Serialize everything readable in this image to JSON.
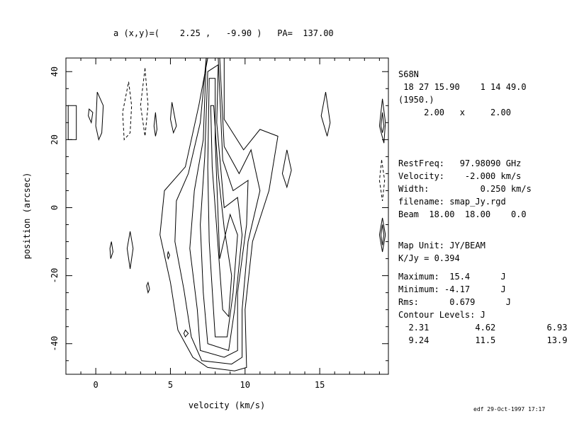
{
  "header": "a (x,y)=(    2.25 ,   -9.90 )   PA=  137.00",
  "info": {
    "source": "S68N",
    "coords": " 18 27 15.90    1 14 49.0",
    "epoch": "(1950.)",
    "cell": "     2.00   x     2.00",
    "restfreq": "RestFreq:   97.98090 GHz",
    "velocity": "Velocity:    -2.000 km/s",
    "width": "Width:          0.250 km/s",
    "filename": "filename: smap_Jy.rgd",
    "beam": "Beam  18.00  18.00    0.0",
    "mapunit": "Map Unit: JY/BEAM",
    "kjy": "K/Jy = 0.394",
    "maximum": "Maximum:  15.4      J",
    "minimum": "Minimum: -4.17      J",
    "rms": "Rms:      0.679      J",
    "contour_title": "Contour Levels: J",
    "levels_row1": "  2.31         4.62          6.93",
    "levels_row2": "  9.24         11.5          13.9"
  },
  "stamp": "edf 29-Oct-1997 17:17",
  "chart_data": {
    "type": "contour",
    "xlabel": "velocity (km/s)",
    "ylabel": "position (arcsec)",
    "xlim": [
      -2.0,
      19.6
    ],
    "ylim": [
      -49.0,
      44.0
    ],
    "xticks": [
      0,
      5,
      10,
      15
    ],
    "yticks": [
      -40,
      -20,
      0,
      20,
      40
    ],
    "contour_levels": [
      2.31,
      4.62,
      6.93,
      9.24,
      11.5,
      13.9
    ],
    "negative_levels_dashed": true,
    "contours": [
      {
        "level": 2.31,
        "points": [
          [
            7.5,
            44
          ],
          [
            6.9,
            30
          ],
          [
            6.0,
            12
          ],
          [
            4.6,
            5
          ],
          [
            4.3,
            -8
          ],
          [
            5.0,
            -22
          ],
          [
            5.5,
            -36
          ],
          [
            6.5,
            -44
          ],
          [
            7.5,
            -47
          ],
          [
            9.3,
            -48
          ],
          [
            10.1,
            -47
          ],
          [
            10.0,
            -30
          ],
          [
            10.5,
            -10
          ],
          [
            11.6,
            5
          ],
          [
            12.2,
            21
          ],
          [
            11.0,
            23
          ],
          [
            9.9,
            17
          ],
          [
            8.6,
            26
          ],
          [
            8.6,
            44
          ]
        ]
      },
      {
        "level": 4.62,
        "points": [
          [
            7.4,
            44
          ],
          [
            7.0,
            25
          ],
          [
            6.2,
            10
          ],
          [
            5.4,
            2
          ],
          [
            5.3,
            -10
          ],
          [
            5.9,
            -24
          ],
          [
            6.4,
            -38
          ],
          [
            7.1,
            -45
          ],
          [
            9.1,
            -46
          ],
          [
            9.8,
            -44
          ],
          [
            9.8,
            -30
          ],
          [
            10.2,
            -10
          ],
          [
            11.0,
            5
          ],
          [
            10.4,
            17
          ],
          [
            9.6,
            10
          ],
          [
            8.6,
            18
          ],
          [
            8.3,
            44
          ]
        ]
      },
      {
        "level": 6.93,
        "points": [
          [
            7.4,
            44
          ],
          [
            7.2,
            20
          ],
          [
            6.6,
            5
          ],
          [
            6.3,
            -12
          ],
          [
            6.8,
            -30
          ],
          [
            7.0,
            -42
          ],
          [
            8.6,
            -44
          ],
          [
            9.5,
            -42
          ],
          [
            9.5,
            -25
          ],
          [
            10.1,
            -5
          ],
          [
            10.2,
            8
          ],
          [
            9.2,
            5
          ],
          [
            8.5,
            14
          ],
          [
            8.2,
            44
          ]
        ]
      },
      {
        "level": 9.24,
        "points": [
          [
            7.5,
            40
          ],
          [
            7.3,
            15
          ],
          [
            7.0,
            -5
          ],
          [
            7.2,
            -25
          ],
          [
            7.5,
            -40
          ],
          [
            8.9,
            -42
          ],
          [
            9.3,
            -30
          ],
          [
            9.8,
            -8
          ],
          [
            9.5,
            3
          ],
          [
            8.6,
            0
          ],
          [
            8.1,
            25
          ],
          [
            8.2,
            42
          ]
        ]
      },
      {
        "level": 11.5,
        "points": [
          [
            7.6,
            38
          ],
          [
            7.5,
            12
          ],
          [
            7.6,
            -10
          ],
          [
            8.0,
            -38
          ],
          [
            8.8,
            -38
          ],
          [
            9.2,
            -25
          ],
          [
            9.5,
            -8
          ],
          [
            9.0,
            -2
          ],
          [
            8.3,
            -15
          ],
          [
            8.0,
            20
          ],
          [
            8.0,
            38
          ]
        ]
      },
      {
        "level": 13.9,
        "points": [
          [
            7.7,
            30
          ],
          [
            7.8,
            12
          ],
          [
            8.5,
            -30
          ],
          [
            8.9,
            -32
          ],
          [
            9.1,
            -20
          ],
          [
            8.6,
            -6
          ],
          [
            8.2,
            10
          ],
          [
            7.9,
            30
          ]
        ]
      },
      {
        "level": 2.31,
        "points": [
          [
            -1.85,
            30
          ],
          [
            -1.3,
            30
          ],
          [
            -1.3,
            20
          ],
          [
            -1.85,
            20
          ]
        ]
      },
      {
        "level": 2.31,
        "points": [
          [
            0.1,
            34
          ],
          [
            0.5,
            30
          ],
          [
            0.4,
            22
          ],
          [
            0.2,
            20
          ],
          [
            0.0,
            24
          ],
          [
            0.1,
            34
          ]
        ]
      },
      {
        "level": 2.31,
        "points": [
          [
            -0.45,
            29
          ],
          [
            -0.2,
            28
          ],
          [
            -0.3,
            25
          ],
          [
            -0.5,
            27
          ],
          [
            -0.45,
            29
          ]
        ]
      },
      {
        "level": -2.31,
        "points": [
          [
            2.2,
            37
          ],
          [
            2.4,
            30
          ],
          [
            2.3,
            22
          ],
          [
            1.9,
            20
          ],
          [
            1.8,
            28
          ],
          [
            2.2,
            37
          ]
        ]
      },
      {
        "level": -2.31,
        "points": [
          [
            3.3,
            41
          ],
          [
            3.5,
            30
          ],
          [
            3.3,
            21
          ],
          [
            3.0,
            30
          ],
          [
            3.3,
            41
          ]
        ]
      },
      {
        "level": 2.31,
        "points": [
          [
            4.0,
            28
          ],
          [
            4.1,
            23
          ],
          [
            4.0,
            21
          ],
          [
            3.9,
            24
          ],
          [
            4.0,
            28
          ]
        ]
      },
      {
        "level": 2.31,
        "points": [
          [
            5.1,
            31
          ],
          [
            5.4,
            24
          ],
          [
            5.2,
            22
          ],
          [
            5.0,
            26
          ],
          [
            5.1,
            31
          ]
        ]
      },
      {
        "level": 2.31,
        "points": [
          [
            15.4,
            34
          ],
          [
            15.7,
            25
          ],
          [
            15.5,
            21
          ],
          [
            15.1,
            27
          ],
          [
            15.4,
            34
          ]
        ]
      },
      {
        "level": 2.31,
        "points": [
          [
            12.8,
            17
          ],
          [
            13.1,
            11
          ],
          [
            12.8,
            6
          ],
          [
            12.5,
            10
          ],
          [
            12.8,
            17
          ]
        ]
      },
      {
        "level": 2.31,
        "points": [
          [
            19.2,
            32
          ],
          [
            19.4,
            25
          ],
          [
            19.3,
            19
          ],
          [
            19.0,
            24
          ],
          [
            19.2,
            32
          ]
        ]
      },
      {
        "level": 4.62,
        "points": [
          [
            19.2,
            28
          ],
          [
            19.3,
            24
          ],
          [
            19.2,
            22
          ],
          [
            19.1,
            24
          ],
          [
            19.2,
            28
          ]
        ]
      },
      {
        "level": -2.31,
        "points": [
          [
            19.15,
            14
          ],
          [
            19.35,
            8
          ],
          [
            19.2,
            2
          ],
          [
            19.0,
            8
          ],
          [
            19.15,
            14
          ]
        ]
      },
      {
        "level": 2.31,
        "points": [
          [
            19.2,
            -3
          ],
          [
            19.4,
            -8
          ],
          [
            19.2,
            -13
          ],
          [
            19.0,
            -8
          ],
          [
            19.2,
            -3
          ]
        ]
      },
      {
        "level": 4.62,
        "points": [
          [
            19.2,
            -5
          ],
          [
            19.3,
            -8
          ],
          [
            19.2,
            -11
          ],
          [
            19.1,
            -8
          ],
          [
            19.2,
            -5
          ]
        ]
      },
      {
        "level": 2.31,
        "points": [
          [
            2.3,
            -7
          ],
          [
            2.5,
            -12
          ],
          [
            2.3,
            -18
          ],
          [
            2.1,
            -12
          ],
          [
            2.3,
            -7
          ]
        ]
      },
      {
        "level": 2.31,
        "points": [
          [
            1.05,
            -10
          ],
          [
            1.15,
            -13
          ],
          [
            1.0,
            -15
          ],
          [
            0.95,
            -12
          ],
          [
            1.05,
            -10
          ]
        ]
      },
      {
        "level": 2.31,
        "points": [
          [
            3.5,
            -22
          ],
          [
            3.6,
            -24
          ],
          [
            3.5,
            -25
          ],
          [
            3.4,
            -23
          ],
          [
            3.5,
            -22
          ]
        ]
      },
      {
        "level": 2.31,
        "points": [
          [
            6.0,
            -36
          ],
          [
            6.2,
            -37
          ],
          [
            6.0,
            -38
          ],
          [
            5.9,
            -37
          ],
          [
            6.0,
            -36
          ]
        ]
      },
      {
        "level": 2.31,
        "points": [
          [
            4.85,
            -13
          ],
          [
            4.95,
            -14
          ],
          [
            4.85,
            -15
          ],
          [
            4.8,
            -14
          ],
          [
            4.85,
            -13
          ]
        ]
      }
    ]
  }
}
